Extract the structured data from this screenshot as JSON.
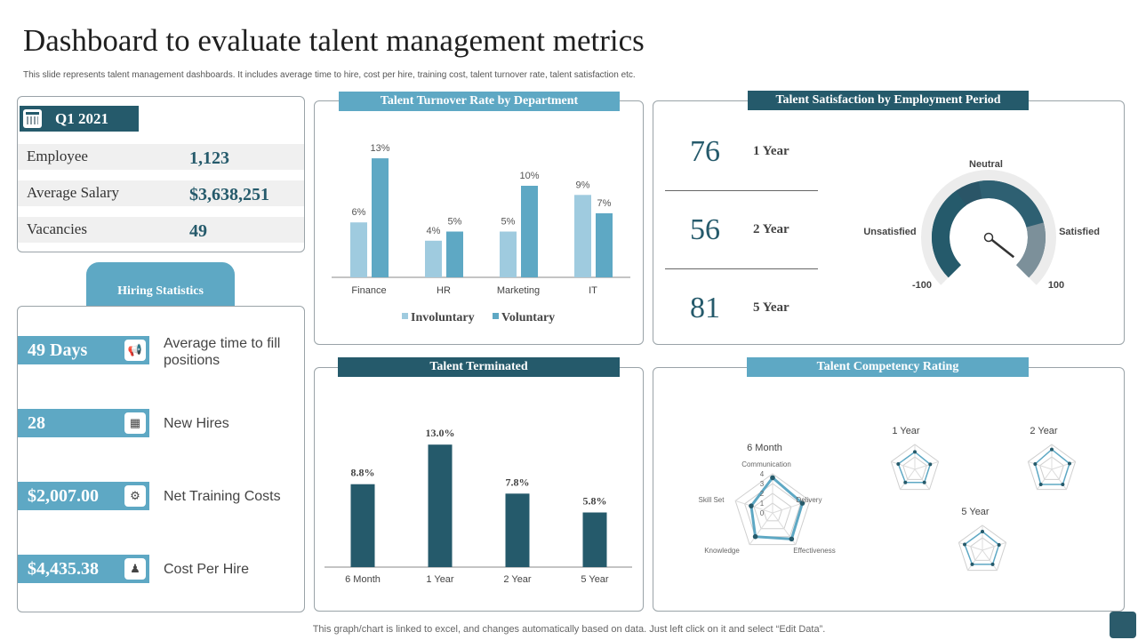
{
  "header": {
    "title": "Dashboard to evaluate talent management metrics",
    "subtitle": "This slide represents talent management dashboards. It includes average time to hire, cost per hire, training cost, talent turnover rate, talent satisfaction etc."
  },
  "footer": "This graph/chart is linked to excel, and changes automatically based on data. Just left click on it and select “Edit Data”.",
  "colors": {
    "dark_teal": "#255a6b",
    "light_blue": "#5ea8c4",
    "pale_blue": "#9fcbdf"
  },
  "summary": {
    "period": "Q1 2021",
    "rows": [
      {
        "label": "Employee",
        "value": "1,123"
      },
      {
        "label": "Average Salary",
        "value": "$3,638,251"
      },
      {
        "label": "Vacancies",
        "value": "49"
      }
    ]
  },
  "hiring": {
    "title": "Hiring Statistics",
    "items": [
      {
        "value": "49 Days",
        "label": "Average time to fill positions",
        "icon": "megaphone-icon"
      },
      {
        "value": "28",
        "label": "New Hires",
        "icon": "chart-icon"
      },
      {
        "value": "$2,007.00",
        "label": "Net Training Costs",
        "icon": "gear-icon"
      },
      {
        "value": "$4,435.38",
        "label": "Cost Per Hire",
        "icon": "person-icon"
      }
    ]
  },
  "chart_data": [
    {
      "type": "bar",
      "title": "Talent Turnover Rate by Department",
      "categories": [
        "Finance",
        "HR",
        "Marketing",
        "IT"
      ],
      "series": [
        {
          "name": "Involuntary",
          "values": [
            6,
            4,
            5,
            9
          ],
          "labels": [
            "6%",
            "4%",
            "5%",
            "9%"
          ]
        },
        {
          "name": "Voluntary",
          "values": [
            13,
            5,
            10,
            7
          ],
          "labels": [
            "13%",
            "5%",
            "10%",
            "7%"
          ]
        }
      ],
      "legend": "bottom"
    },
    {
      "type": "gauge",
      "title": "Talent Satisfaction by Employment Period",
      "periods": [
        {
          "value": "76",
          "label": "1 Year"
        },
        {
          "value": "56",
          "label": "2 Year"
        },
        {
          "value": "81",
          "label": "5 Year"
        }
      ],
      "gauge": {
        "min": -100,
        "max": 100,
        "min_label": "-100",
        "max_label": "100",
        "left_label": "Unsatisfied",
        "top_label": "Neutral",
        "right_label": "Satisfied",
        "needle_value": 95
      }
    },
    {
      "type": "bar",
      "title": "Talent Terminated",
      "categories": [
        "6 Month",
        "1 Year",
        "2 Year",
        "5 Year"
      ],
      "values": [
        8.8,
        13.0,
        7.8,
        5.8
      ],
      "labels": [
        "8.8%",
        "13.0%",
        "7.8%",
        "5.8%"
      ]
    },
    {
      "type": "radar",
      "title": "Talent Competency Rating",
      "axes": [
        "Communication",
        "Delivery",
        "Effectiveness",
        "Knowledge",
        "Skill Set"
      ],
      "rmax": 4,
      "ticks": [
        "0",
        "1",
        "2",
        "3",
        "4"
      ],
      "charts": [
        {
          "name": "6 Month",
          "values": [
            3.6,
            3.2,
            3.3,
            3.0,
            2.3
          ]
        },
        {
          "name": "1 Year",
          "values": [
            2.8,
            2.6,
            2.6,
            2.6,
            2.8
          ]
        },
        {
          "name": "2 Year",
          "values": [
            3.2,
            3.0,
            3.0,
            3.0,
            2.8
          ]
        },
        {
          "name": "5 Year",
          "values": [
            3.0,
            2.8,
            2.8,
            2.8,
            3.0
          ]
        }
      ]
    }
  ]
}
